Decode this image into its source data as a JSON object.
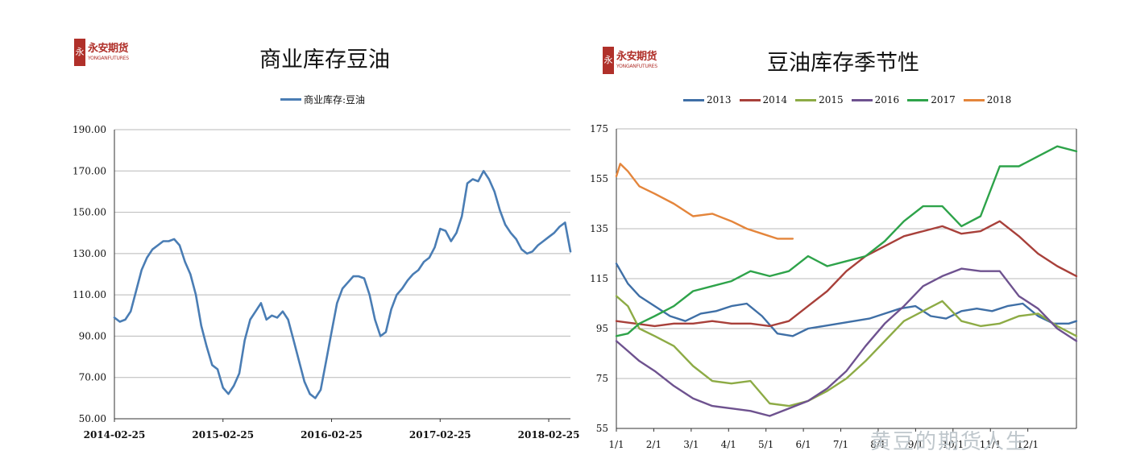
{
  "logo": {
    "mark": "永",
    "cn": "永安期货",
    "en": "YONGANFUTURES"
  },
  "watermark": "黄豆的期货人生",
  "chart_data": [
    {
      "type": "line",
      "title": "商业库存豆油",
      "ylim": [
        50,
        190
      ],
      "yticks": [
        "190.00",
        "170.00",
        "150.00",
        "130.00",
        "110.00",
        "90.00",
        "70.00",
        "50.00"
      ],
      "ytick_values": [
        190,
        170,
        150,
        130,
        110,
        90,
        70,
        50
      ],
      "xticks": [
        "2014-02-25",
        "2015-02-25",
        "2016-02-25",
        "2017-02-25",
        "2018-02-25"
      ],
      "x_range": [
        2014.0,
        2018.2
      ],
      "grid": true,
      "legend_position": "top",
      "series": [
        {
          "name": "商业库存:豆油",
          "color": "#4a7db4",
          "x": [
            2014.0,
            2014.05,
            2014.1,
            2014.15,
            2014.2,
            2014.25,
            2014.3,
            2014.35,
            2014.4,
            2014.45,
            2014.5,
            2014.55,
            2014.6,
            2014.65,
            2014.7,
            2014.75,
            2014.8,
            2014.85,
            2014.9,
            2014.95,
            2015.0,
            2015.05,
            2015.1,
            2015.15,
            2015.2,
            2015.25,
            2015.3,
            2015.35,
            2015.4,
            2015.45,
            2015.5,
            2015.55,
            2015.6,
            2015.65,
            2015.7,
            2015.75,
            2015.8,
            2015.85,
            2015.9,
            2015.95,
            2016.0,
            2016.05,
            2016.1,
            2016.15,
            2016.2,
            2016.25,
            2016.3,
            2016.35,
            2016.4,
            2016.45,
            2016.5,
            2016.55,
            2016.6,
            2016.65,
            2016.7,
            2016.75,
            2016.8,
            2016.85,
            2016.9,
            2016.95,
            2017.0,
            2017.05,
            2017.1,
            2017.15,
            2017.2,
            2017.25,
            2017.3,
            2017.35,
            2017.4,
            2017.45,
            2017.5,
            2017.55,
            2017.6,
            2017.65,
            2017.7,
            2017.75,
            2017.8,
            2017.85,
            2017.9,
            2017.95,
            2018.0,
            2018.05,
            2018.1,
            2018.15,
            2018.2
          ],
          "values": [
            99,
            97,
            98,
            102,
            112,
            122,
            128,
            132,
            134,
            136,
            136,
            137,
            134,
            126,
            120,
            110,
            95,
            85,
            76,
            74,
            65,
            62,
            66,
            72,
            88,
            98,
            102,
            106,
            98,
            100,
            99,
            102,
            98,
            88,
            78,
            68,
            62,
            60,
            64,
            78,
            92,
            106,
            113,
            116,
            119,
            119,
            118,
            110,
            98,
            90,
            92,
            103,
            110,
            113,
            117,
            120,
            122,
            126,
            128,
            133,
            142,
            141,
            136,
            140,
            148,
            164,
            166,
            165,
            170,
            166,
            160,
            151,
            144,
            140,
            137,
            132,
            130,
            131,
            134,
            136,
            138,
            140,
            143,
            145,
            131
          ]
        }
      ]
    },
    {
      "type": "line",
      "title": "豆油库存季节性",
      "ylim": [
        55,
        175
      ],
      "yticks": [
        "175",
        "155",
        "135",
        "115",
        "95",
        "75",
        "55"
      ],
      "ytick_values": [
        175,
        155,
        135,
        115,
        95,
        75,
        55
      ],
      "xticks": [
        "1/1",
        "2/1",
        "3/1",
        "4/1",
        "5/1",
        "6/1",
        "7/1",
        "8/1",
        "9/1",
        "10/1",
        "11/1",
        "12/1"
      ],
      "x_range": [
        0,
        12
      ],
      "grid": true,
      "legend_position": "top",
      "series": [
        {
          "name": "2013",
          "color": "#3f6fa6",
          "x": [
            0,
            0.3,
            0.6,
            1,
            1.4,
            1.8,
            2.2,
            2.6,
            3,
            3.4,
            3.8,
            4.2,
            4.6,
            5,
            5.4,
            5.8,
            6.2,
            6.6,
            7,
            7.4,
            7.8,
            8.2,
            8.6,
            9,
            9.4,
            9.8,
            10.2,
            10.6,
            11,
            11.4,
            11.8,
            12
          ],
          "values": [
            121,
            113,
            108,
            104,
            100,
            98,
            101,
            102,
            104,
            105,
            100,
            93,
            92,
            95,
            96,
            97,
            98,
            99,
            101,
            103,
            104,
            100,
            99,
            102,
            103,
            102,
            104,
            105,
            100,
            97,
            97,
            98
          ]
        },
        {
          "name": "2014",
          "color": "#a8403a",
          "x": [
            0,
            0.5,
            1,
            1.5,
            2,
            2.5,
            3,
            3.5,
            4,
            4.5,
            5,
            5.5,
            6,
            6.5,
            7,
            7.5,
            8,
            8.5,
            9,
            9.5,
            10,
            10.5,
            11,
            11.5,
            12
          ],
          "values": [
            98,
            97,
            96,
            97,
            97,
            98,
            97,
            97,
            96,
            98,
            104,
            110,
            118,
            124,
            128,
            132,
            134,
            136,
            133,
            134,
            138,
            132,
            125,
            120,
            116
          ]
        },
        {
          "name": "2015",
          "color": "#8dab45",
          "x": [
            0,
            0.3,
            0.6,
            1,
            1.5,
            2,
            2.5,
            3,
            3.5,
            4,
            4.5,
            5,
            5.5,
            6,
            6.5,
            7,
            7.5,
            8,
            8.5,
            9,
            9.5,
            10,
            10.5,
            11,
            11.5,
            12
          ],
          "values": [
            108,
            104,
            95,
            92,
            88,
            80,
            74,
            73,
            74,
            65,
            64,
            66,
            70,
            75,
            82,
            90,
            98,
            102,
            106,
            98,
            96,
            97,
            100,
            101,
            96,
            92
          ]
        },
        {
          "name": "2016",
          "color": "#6e528f",
          "x": [
            0,
            0.3,
            0.6,
            1,
            1.5,
            2,
            2.5,
            3,
            3.5,
            4,
            4.5,
            5,
            5.5,
            6,
            6.5,
            7,
            7.5,
            8,
            8.5,
            9,
            9.5,
            10,
            10.5,
            11,
            11.5,
            12
          ],
          "values": [
            90,
            86,
            82,
            78,
            72,
            67,
            64,
            63,
            62,
            60,
            63,
            66,
            71,
            78,
            88,
            97,
            104,
            112,
            116,
            119,
            118,
            118,
            108,
            103,
            95,
            90
          ]
        },
        {
          "name": "2017",
          "color": "#2ea34a",
          "x": [
            0,
            0.3,
            0.6,
            1,
            1.5,
            2,
            2.5,
            3,
            3.5,
            4,
            4.5,
            5,
            5.5,
            6,
            6.5,
            7,
            7.5,
            8,
            8.5,
            9,
            9.5,
            10,
            10.5,
            11,
            11.5,
            12
          ],
          "values": [
            92,
            93,
            97,
            100,
            104,
            110,
            112,
            114,
            118,
            116,
            118,
            124,
            120,
            122,
            124,
            130,
            138,
            144,
            144,
            136,
            140,
            160,
            160,
            164,
            168,
            166
          ]
        },
        {
          "name": "2018",
          "color": "#e4853b",
          "x": [
            0,
            0.1,
            0.3,
            0.6,
            1,
            1.5,
            2,
            2.5,
            3,
            3.4,
            3.8,
            4.2,
            4.6
          ],
          "values": [
            156,
            161,
            158,
            152,
            149,
            145,
            140,
            141,
            138,
            135,
            133,
            131,
            131
          ]
        }
      ]
    }
  ]
}
